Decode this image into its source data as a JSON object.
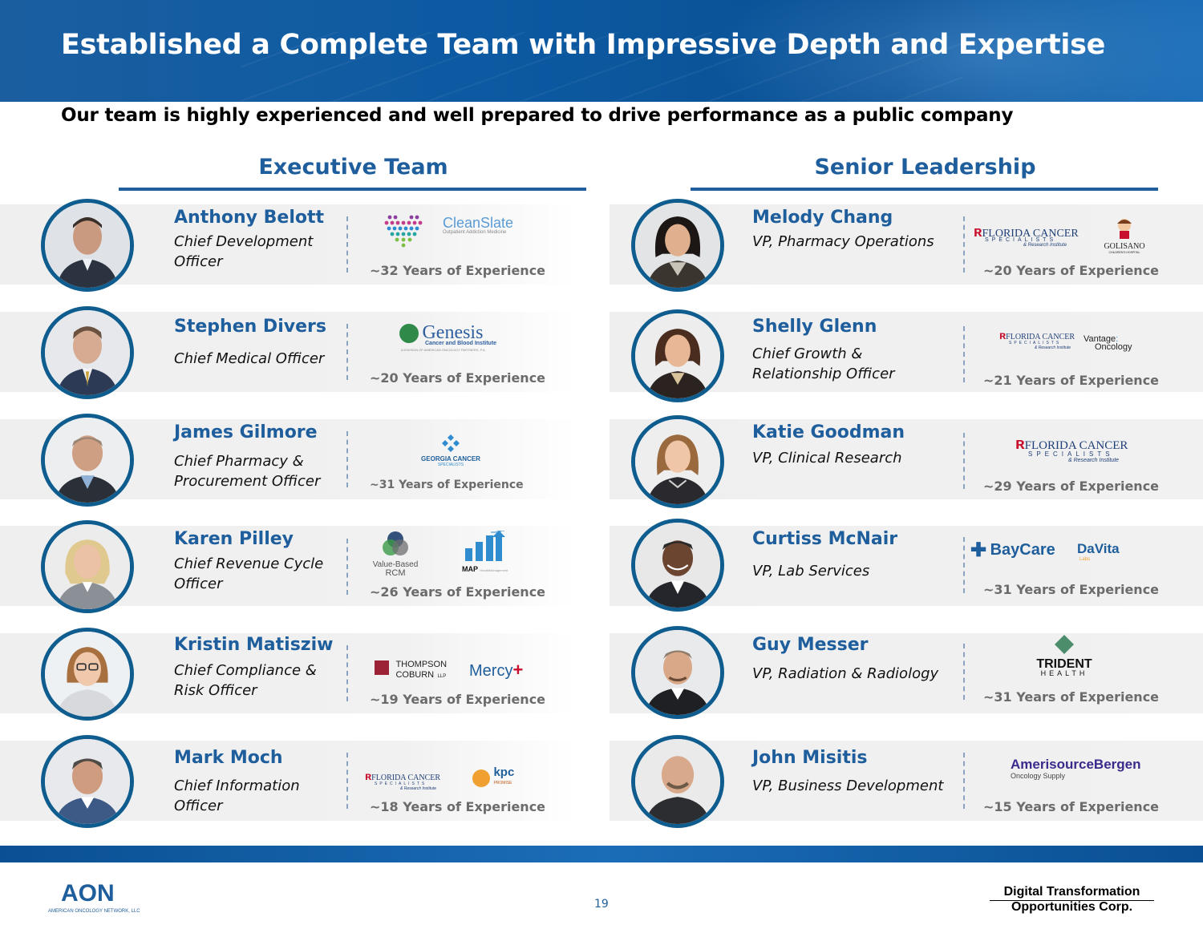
{
  "header": {
    "title": "Established a Complete Team with Impressive Depth and Expertise"
  },
  "subtitle": "Our team is highly experienced and well prepared to drive performance as a public company",
  "sections": {
    "executive": "Executive Team",
    "senior": "Senior Leadership"
  },
  "executive": [
    {
      "name": "Anthony Belott",
      "title": "Chief Development Officer",
      "experience": "~32 Years of Experience",
      "logos": [
        "dotted-heart-logo",
        "CleanSlate"
      ]
    },
    {
      "name": "Stephen Divers",
      "title": "Chief Medical Officer",
      "experience": "~20 Years of Experience",
      "logos": [
        "Genesis"
      ]
    },
    {
      "name": "James Gilmore",
      "title": "Chief Pharmacy & Procurement Officer",
      "experience": "~31 Years of Experience",
      "logos": [
        "GEORGIA CANCER"
      ]
    },
    {
      "name": "Karen Pilley",
      "title": "Chief Revenue Cycle Officer",
      "experience": "~26 Years of Experience",
      "logos": [
        "Value-Based RCM",
        "MAP"
      ]
    },
    {
      "name": "Kristin Matisziw",
      "title": "Chief Compliance & Risk Officer",
      "experience": "~19 Years of Experience",
      "logos": [
        "THOMPSON COBURN LLP",
        "Mercy"
      ]
    },
    {
      "name": "Mark Moch",
      "title": "Chief Information Officer",
      "experience": "~18 Years of Experience",
      "logos": [
        "FLORIDA CANCER",
        "kpc"
      ]
    }
  ],
  "senior": [
    {
      "name": "Melody Chang",
      "title": "VP, Pharmacy Operations",
      "experience": "~20 Years of Experience",
      "logos": [
        "FLORIDA CANCER",
        "GOLISANO"
      ]
    },
    {
      "name": "Shelly Glenn",
      "title": "Chief Growth & Relationship Officer",
      "experience": "~21 Years of Experience",
      "logos": [
        "FLORIDA CANCER",
        "Vantage Oncology"
      ]
    },
    {
      "name": "Katie Goodman",
      "title": "VP, Clinical Research",
      "experience": "~29 Years of Experience",
      "logos": [
        "FLORIDA CANCER"
      ]
    },
    {
      "name": "Curtiss McNair",
      "title": "VP, Lab Services",
      "experience": "~31 Years of Experience",
      "logos": [
        "BayCare",
        "DaVita"
      ]
    },
    {
      "name": "Guy Messer",
      "title": "VP, Radiation & Radiology",
      "experience": "~31 Years of Experience",
      "logos": [
        "TRIDENT HEALTH"
      ]
    },
    {
      "name": "John Misitis",
      "title": "VP, Business Development",
      "experience": "~15 Years of Experience",
      "logos": [
        "AmerisourceBergen"
      ]
    }
  ],
  "logo_text": {
    "cleanslate": "CleanSlate",
    "cleanslate_sub": "Outpatient Addiction Medicine",
    "genesis": "Genesis",
    "genesis_sub": "Cancer and Blood Institute",
    "genesis_sub2": "A DIVISION OF AMERICAN ONCOLOGY PARTNERS, P.A.",
    "georgia": "GEORGIA CANCER",
    "georgia_sub": "SPECIALISTS",
    "vbrcm1": "Value-Based",
    "vbrcm2": "RCM",
    "map": "MAP",
    "map_sub": "HealthManagement",
    "thompson1": "THOMPSON",
    "thompson2": "COBURN",
    "thompson3": "LLP",
    "mercy": "Mercy",
    "fcs": "FLORIDA CANCER",
    "fcs_sub": "SPECIALISTS",
    "fcs_sub2": "& Research Institute",
    "kpc": "kpc",
    "kpc_sub": "PROMISE",
    "golisano": "GOLISANO",
    "golisano_sub": "CHILDREN'S HOSPITAL",
    "vantage1": "Vantage",
    "vantage2": "Oncology",
    "baycare": "BayCare",
    "davita": "DaVita",
    "davita_sub": "Labs",
    "trident1": "TRIDENT",
    "trident2": "HEALTH",
    "abc": "AmerisourceBergen",
    "abc_sub": "Oncology Supply"
  },
  "footer": {
    "page": "19",
    "aon": "AON",
    "aon_sub": "AMERICAN ONCOLOGY NETWORK, LLC",
    "dto_line1": "Digital Transformation",
    "dto_line2": "Opportunities Corp."
  },
  "colors": {
    "brand_blue": "#1f5e9c",
    "header_blue": "#0a4f93",
    "ring": "#0f5c8f",
    "experience_gray": "#6b6b6b"
  }
}
